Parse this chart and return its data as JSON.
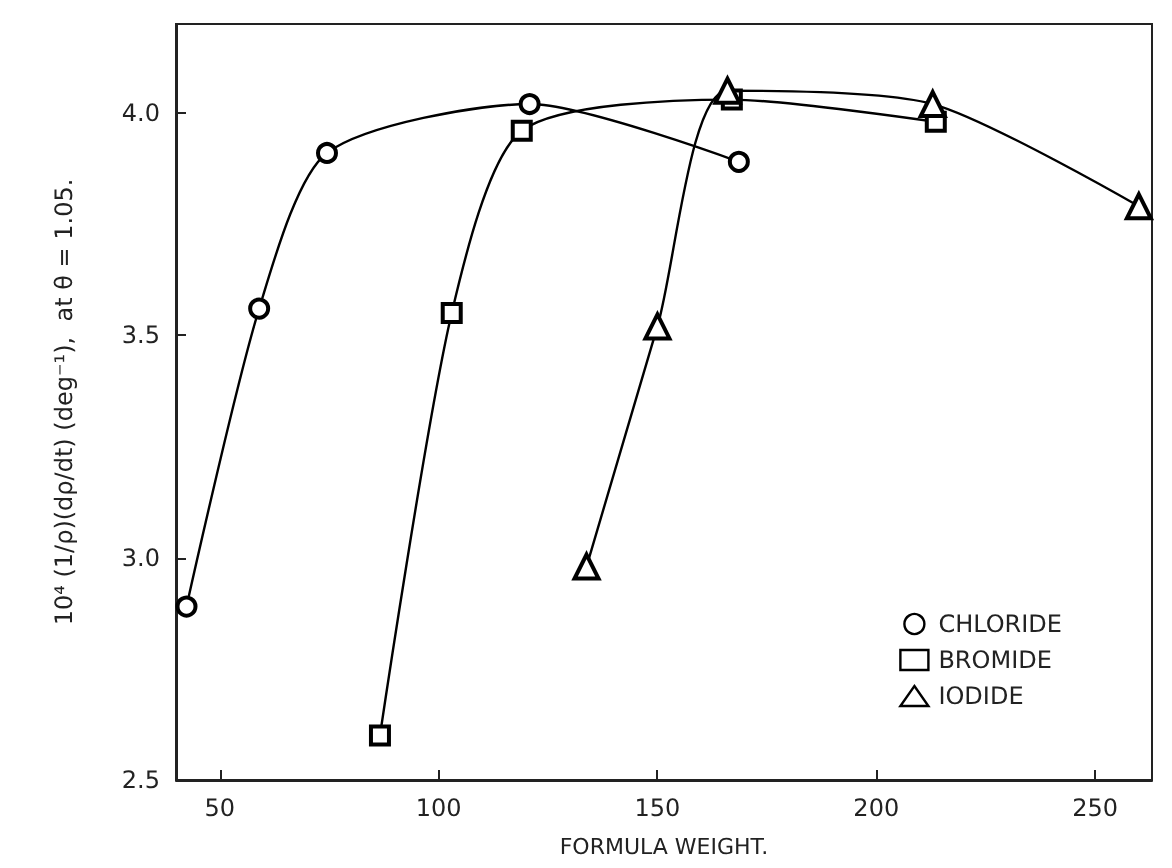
{
  "chart_data": {
    "type": "line",
    "xlabel": "FORMULA WEIGHT.",
    "ylabel": "10⁴ (1/ρ)(dρ/dt) (deg⁻¹),  at θ = 1.05.",
    "xlim": [
      40,
      263
    ],
    "xticks": [
      50,
      100,
      150,
      200,
      250
    ],
    "ylim": [
      2.5,
      4.2
    ],
    "yticks": [
      {
        "value": 2.5,
        "label": "2.5"
      },
      {
        "value": 3,
        "label": "3.0"
      },
      {
        "value": 3.5,
        "label": "3.5"
      },
      {
        "value": 4,
        "label": "4.0"
      }
    ],
    "grid": false,
    "legend": "bottom right",
    "line_style": "solid",
    "series": [
      {
        "name": "CHLORIDE",
        "color": "#000000",
        "marker": "circle",
        "x": [
          42.4,
          59,
          74.5,
          120.8,
          168.6
        ],
        "values": [
          2.89,
          3.56,
          3.91,
          4.02,
          3.89
        ]
      },
      {
        "name": "BROMIDE",
        "color": "#000000",
        "marker": "square",
        "x": [
          86.6,
          103,
          119,
          167,
          213.6
        ],
        "values": [
          2.6,
          3.55,
          3.96,
          4.03,
          3.98
        ]
      },
      {
        "name": "IODIDE",
        "color": "#000000",
        "marker": "triangle",
        "x": [
          133.8,
          150,
          166,
          212.9,
          260
        ],
        "values": [
          2.98,
          3.52,
          4.05,
          4.02,
          3.79
        ]
      }
    ]
  }
}
